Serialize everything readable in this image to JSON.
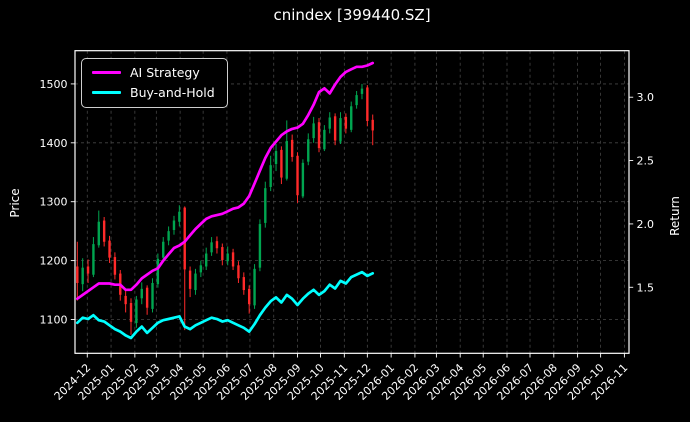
{
  "title": "cnindex [399440.SZ]",
  "colors": {
    "background": "#000000",
    "text": "#ffffff",
    "axis": "#ffffff",
    "grid": "#9a9a9a",
    "ai_strategy": "#ff00ff",
    "buy_and_hold": "#00ffff",
    "candle_up": "#00a550",
    "candle_down": "#ff2a2a",
    "legend_border": "#cfcfcf"
  },
  "legend": {
    "position": "upper-left",
    "items": [
      {
        "label": "AI Strategy",
        "color": "#ff00ff"
      },
      {
        "label": "Buy-and-Hold",
        "color": "#00ffff"
      }
    ]
  },
  "chart_data": {
    "type": "candlestick+line",
    "title": "cnindex [399440.SZ]",
    "grid": true,
    "legend_position": "upper-left",
    "x_axis": {
      "xlim": [
        "2024-11-15",
        "2026-11-07"
      ],
      "tick_rotation_deg": 45,
      "tick_labels": [
        "2024-12",
        "2025-01",
        "2025-02",
        "2025-03",
        "2025-04",
        "2025-05",
        "2025-06",
        "2025-07",
        "2025-08",
        "2025-09",
        "2025-10",
        "2025-11",
        "2025-12",
        "2026-01",
        "2026-02",
        "2026-03",
        "2026-04",
        "2026-05",
        "2026-06",
        "2026-07",
        "2026-08",
        "2026-09",
        "2026-10",
        "2026-11"
      ]
    },
    "left_axis": {
      "label": "Price",
      "ticks": [
        1100,
        1200,
        1300,
        1400,
        1500
      ],
      "ylim": [
        1042.6,
        1556.4
      ]
    },
    "right_axis": {
      "label": "Return",
      "ticks": [
        1.5,
        2.0,
        2.5,
        3.0
      ],
      "ylim": [
        0.979,
        3.367
      ]
    },
    "candles": {
      "axis": "left",
      "interval": "weekly-estimate",
      "dates": [
        "2024-11-18",
        "2024-11-25",
        "2024-12-02",
        "2024-12-09",
        "2024-12-16",
        "2024-12-23",
        "2024-12-30",
        "2025-01-06",
        "2025-01-13",
        "2025-01-20",
        "2025-01-27",
        "2025-02-03",
        "2025-02-10",
        "2025-02-17",
        "2025-02-24",
        "2025-03-03",
        "2025-03-10",
        "2025-03-17",
        "2025-03-24",
        "2025-03-31",
        "2025-04-07",
        "2025-04-14",
        "2025-04-21",
        "2025-04-28",
        "2025-05-05",
        "2025-05-12",
        "2025-05-19",
        "2025-05-26",
        "2025-06-02",
        "2025-06-09",
        "2025-06-16",
        "2025-06-23",
        "2025-06-30",
        "2025-07-07",
        "2025-07-14",
        "2025-07-21",
        "2025-07-28",
        "2025-08-04",
        "2025-08-11",
        "2025-08-18",
        "2025-08-25",
        "2025-09-01",
        "2025-09-08",
        "2025-09-15",
        "2025-09-22",
        "2025-09-29",
        "2025-10-06",
        "2025-10-13",
        "2025-10-20",
        "2025-10-27",
        "2025-11-03",
        "2025-11-10",
        "2025-11-17",
        "2025-11-24",
        "2025-12-01",
        "2025-12-08"
      ],
      "open": [
        1190,
        1160,
        1190,
        1176,
        1226,
        1268,
        1234,
        1206,
        1178,
        1140,
        1128,
        1094,
        1136,
        1154,
        1118,
        1160,
        1205,
        1234,
        1252,
        1266,
        1290,
        1183,
        1150,
        1180,
        1190,
        1214,
        1233,
        1223,
        1199,
        1214,
        1192,
        1172,
        1152,
        1124,
        1188,
        1264,
        1325,
        1364,
        1388,
        1339,
        1405,
        1378,
        1309,
        1368,
        1408,
        1435,
        1389,
        1424,
        1445,
        1402,
        1444,
        1422,
        1464,
        1483,
        1494,
        1439
      ],
      "high": [
        1232,
        1204,
        1202,
        1240,
        1285,
        1274,
        1242,
        1214,
        1184,
        1150,
        1136,
        1140,
        1163,
        1158,
        1170,
        1212,
        1240,
        1258,
        1276,
        1294,
        1292,
        1190,
        1186,
        1200,
        1222,
        1240,
        1241,
        1229,
        1224,
        1220,
        1199,
        1180,
        1158,
        1194,
        1270,
        1334,
        1378,
        1398,
        1394,
        1438,
        1414,
        1384,
        1372,
        1416,
        1444,
        1442,
        1430,
        1452,
        1450,
        1452,
        1450,
        1470,
        1488,
        1500,
        1498,
        1448
      ],
      "low": [
        1132,
        1148,
        1162,
        1172,
        1222,
        1224,
        1196,
        1168,
        1132,
        1112,
        1074,
        1086,
        1126,
        1108,
        1112,
        1154,
        1198,
        1226,
        1244,
        1258,
        1082,
        1138,
        1142,
        1172,
        1184,
        1208,
        1212,
        1192,
        1192,
        1184,
        1162,
        1142,
        1110,
        1118,
        1182,
        1256,
        1318,
        1352,
        1330,
        1336,
        1368,
        1298,
        1306,
        1362,
        1400,
        1384,
        1386,
        1416,
        1396,
        1398,
        1416,
        1418,
        1458,
        1474,
        1428,
        1396
      ],
      "close": [
        1162,
        1188,
        1178,
        1228,
        1266,
        1232,
        1205,
        1176,
        1142,
        1126,
        1096,
        1134,
        1152,
        1120,
        1162,
        1203,
        1232,
        1250,
        1268,
        1283,
        1185,
        1152,
        1178,
        1192,
        1212,
        1231,
        1221,
        1201,
        1212,
        1190,
        1170,
        1150,
        1126,
        1186,
        1262,
        1323,
        1362,
        1386,
        1341,
        1403,
        1376,
        1311,
        1366,
        1406,
        1433,
        1391,
        1422,
        1443,
        1404,
        1442,
        1424,
        1462,
        1481,
        1492,
        1437,
        1421
      ]
    },
    "series": [
      {
        "name": "AI Strategy",
        "axis": "right",
        "color": "#ff00ff",
        "dates": [
          "2024-11-18",
          "2024-11-25",
          "2024-12-02",
          "2024-12-09",
          "2024-12-16",
          "2024-12-23",
          "2024-12-30",
          "2025-01-06",
          "2025-01-13",
          "2025-01-20",
          "2025-01-27",
          "2025-02-03",
          "2025-02-10",
          "2025-02-17",
          "2025-02-24",
          "2025-03-03",
          "2025-03-10",
          "2025-03-17",
          "2025-03-24",
          "2025-03-31",
          "2025-04-07",
          "2025-04-14",
          "2025-04-21",
          "2025-04-28",
          "2025-05-05",
          "2025-05-12",
          "2025-05-19",
          "2025-05-26",
          "2025-06-02",
          "2025-06-09",
          "2025-06-16",
          "2025-06-23",
          "2025-06-30",
          "2025-07-07",
          "2025-07-14",
          "2025-07-21",
          "2025-07-28",
          "2025-08-04",
          "2025-08-11",
          "2025-08-18",
          "2025-08-25",
          "2025-09-01",
          "2025-09-08",
          "2025-09-15",
          "2025-09-22",
          "2025-09-29",
          "2025-10-06",
          "2025-10-13",
          "2025-10-20",
          "2025-10-27",
          "2025-11-03",
          "2025-11-10",
          "2025-11-17",
          "2025-11-24",
          "2025-12-01",
          "2025-12-08"
        ],
        "values": [
          1.41,
          1.44,
          1.47,
          1.5,
          1.53,
          1.53,
          1.53,
          1.52,
          1.52,
          1.48,
          1.48,
          1.52,
          1.57,
          1.6,
          1.63,
          1.65,
          1.71,
          1.76,
          1.81,
          1.83,
          1.86,
          1.91,
          1.96,
          2.0,
          2.04,
          2.06,
          2.07,
          2.08,
          2.1,
          2.12,
          2.13,
          2.16,
          2.22,
          2.32,
          2.42,
          2.52,
          2.6,
          2.65,
          2.7,
          2.73,
          2.75,
          2.76,
          2.79,
          2.86,
          2.94,
          3.04,
          3.07,
          3.03,
          3.1,
          3.16,
          3.2,
          3.22,
          3.24,
          3.24,
          3.25,
          3.27
        ]
      },
      {
        "name": "Buy-and-Hold",
        "axis": "right",
        "color": "#00ffff",
        "dates": [
          "2024-11-18",
          "2024-11-25",
          "2024-12-02",
          "2024-12-09",
          "2024-12-16",
          "2024-12-23",
          "2024-12-30",
          "2025-01-06",
          "2025-01-13",
          "2025-01-20",
          "2025-01-27",
          "2025-02-03",
          "2025-02-10",
          "2025-02-17",
          "2025-02-24",
          "2025-03-03",
          "2025-03-10",
          "2025-03-17",
          "2025-03-24",
          "2025-03-31",
          "2025-04-07",
          "2025-04-14",
          "2025-04-21",
          "2025-04-28",
          "2025-05-05",
          "2025-05-12",
          "2025-05-19",
          "2025-05-26",
          "2025-06-02",
          "2025-06-09",
          "2025-06-16",
          "2025-06-23",
          "2025-06-30",
          "2025-07-07",
          "2025-07-14",
          "2025-07-21",
          "2025-07-28",
          "2025-08-04",
          "2025-08-11",
          "2025-08-18",
          "2025-08-25",
          "2025-09-01",
          "2025-09-08",
          "2025-09-15",
          "2025-09-22",
          "2025-09-29",
          "2025-10-06",
          "2025-10-13",
          "2025-10-20",
          "2025-10-27",
          "2025-11-03",
          "2025-11-10",
          "2025-11-17",
          "2025-11-24",
          "2025-12-01",
          "2025-12-08"
        ],
        "values": [
          1.22,
          1.26,
          1.25,
          1.28,
          1.24,
          1.23,
          1.2,
          1.17,
          1.15,
          1.12,
          1.1,
          1.15,
          1.19,
          1.14,
          1.18,
          1.22,
          1.24,
          1.25,
          1.26,
          1.27,
          1.19,
          1.17,
          1.2,
          1.22,
          1.24,
          1.26,
          1.25,
          1.23,
          1.24,
          1.22,
          1.2,
          1.18,
          1.15,
          1.21,
          1.28,
          1.34,
          1.39,
          1.42,
          1.38,
          1.44,
          1.41,
          1.36,
          1.41,
          1.45,
          1.48,
          1.44,
          1.47,
          1.52,
          1.49,
          1.55,
          1.53,
          1.58,
          1.6,
          1.62,
          1.59,
          1.61
        ]
      }
    ]
  }
}
